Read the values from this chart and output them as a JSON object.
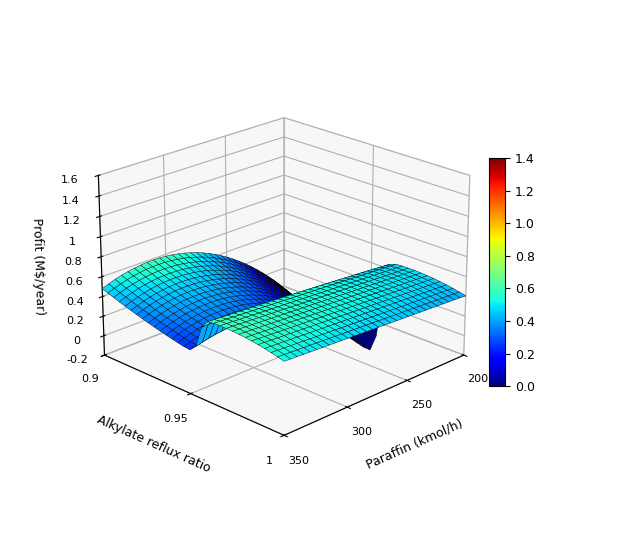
{
  "paraffin_min": 200,
  "paraffin_max": 350,
  "paraffin_n": 31,
  "reflux_min": 0.9,
  "reflux_max": 1.0,
  "reflux_n": 31,
  "zlim": [
    -0.2,
    1.6
  ],
  "xlabel": "Paraffin (kmol/h)",
  "ylabel": "Alkylate reflux ratio",
  "zlabel": "Profit (M$/year)",
  "colormap": "jet",
  "clim": [
    0,
    1.4
  ],
  "colorbar_ticks": [
    0,
    0.2,
    0.4,
    0.6,
    0.8,
    1.0,
    1.2,
    1.4
  ],
  "elev": 22,
  "azim": -135,
  "background_color": "#ffffff"
}
